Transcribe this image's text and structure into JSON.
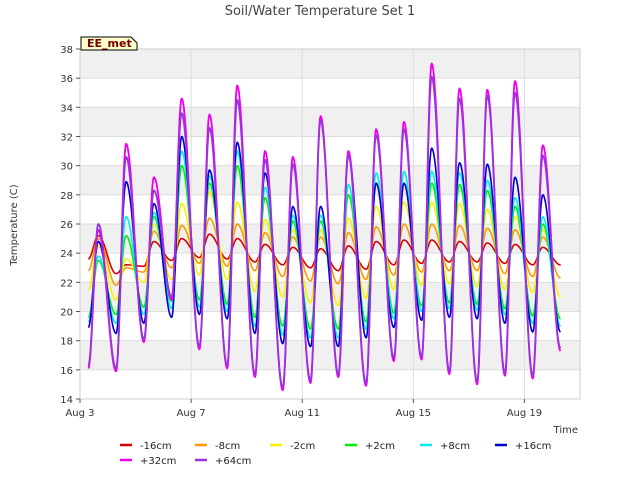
{
  "chart_data": {
    "type": "line",
    "title": "Soil/Water Temperature Set 1",
    "xlabel": "Time",
    "ylabel": "Temperature (C)",
    "site_label": "EE_met",
    "xlim": [
      0,
      18
    ],
    "ylim": [
      14,
      38
    ],
    "yticks": [
      14,
      16,
      18,
      20,
      22,
      24,
      26,
      28,
      30,
      32,
      34,
      36,
      38
    ],
    "xticks": [
      {
        "day": 0,
        "label": "Aug 3"
      },
      {
        "day": 4,
        "label": "Aug 7"
      },
      {
        "day": 8,
        "label": "Aug 11"
      },
      {
        "day": 12,
        "label": "Aug 15"
      },
      {
        "day": 16,
        "label": "Aug 19"
      }
    ],
    "grid": true,
    "legend_position": "bottom",
    "x_day_start": 0.3,
    "x_day_end": 17.3,
    "series": [
      {
        "name": "-16cm",
        "color": "#dd0000",
        "width": 1.6,
        "peaks": [
          25.2,
          23.2,
          24.8,
          25.0,
          25.3,
          25.0,
          24.6,
          24.4,
          24.3,
          24.5,
          24.8,
          24.9,
          24.9,
          24.8,
          24.7,
          24.6,
          24.4,
          24.2
        ],
        "troughs": [
          23.6,
          22.6,
          23.1,
          23.5,
          23.7,
          23.6,
          23.4,
          23.2,
          23.0,
          22.8,
          22.9,
          23.2,
          23.3,
          23.4,
          23.4,
          23.3,
          23.2,
          23.2
        ]
      },
      {
        "name": "-8cm",
        "color": "#ff9900",
        "width": 1.6,
        "peaks": [
          25.0,
          23.0,
          25.5,
          25.9,
          26.4,
          26.0,
          25.4,
          25.1,
          25.1,
          25.4,
          25.8,
          26.0,
          26.0,
          25.9,
          25.7,
          25.6,
          25.1,
          24.6
        ],
        "troughs": [
          22.8,
          21.8,
          22.7,
          23.0,
          23.3,
          23.1,
          22.8,
          22.4,
          22.1,
          21.9,
          22.2,
          22.5,
          22.7,
          22.8,
          22.8,
          22.6,
          22.4,
          22.3
        ]
      },
      {
        "name": "-2cm",
        "color": "#ffee00",
        "width": 1.6,
        "peaks": [
          24.5,
          23.6,
          26.0,
          27.4,
          28.2,
          27.5,
          26.3,
          25.6,
          25.6,
          26.4,
          27.2,
          27.5,
          27.5,
          27.4,
          27.0,
          26.5,
          25.6,
          24.6
        ],
        "troughs": [
          21.5,
          20.8,
          22.0,
          22.2,
          22.5,
          22.2,
          21.4,
          21.0,
          20.6,
          20.4,
          20.9,
          21.5,
          21.8,
          21.9,
          21.7,
          21.5,
          21.3,
          21.0
        ]
      },
      {
        "name": "+2cm",
        "color": "#00ee00",
        "width": 1.6,
        "peaks": [
          23.5,
          25.2,
          26.5,
          30.0,
          28.8,
          30.0,
          27.8,
          26.2,
          26.2,
          28.0,
          28.8,
          28.8,
          28.8,
          28.7,
          28.3,
          27.2,
          26.0,
          24.0
        ],
        "troughs": [
          19.6,
          19.8,
          20.3,
          20.7,
          20.8,
          20.5,
          19.6,
          19.0,
          18.8,
          18.8,
          19.3,
          19.9,
          20.4,
          20.6,
          20.5,
          20.2,
          19.7,
          19.5
        ]
      },
      {
        "name": "+8cm",
        "color": "#00eeee",
        "width": 1.6,
        "peaks": [
          23.8,
          26.5,
          26.8,
          31.0,
          29.3,
          31.0,
          28.5,
          26.6,
          26.6,
          28.7,
          29.5,
          29.6,
          29.6,
          29.5,
          29.0,
          27.8,
          26.5,
          24.3
        ],
        "troughs": [
          19.3,
          19.2,
          19.8,
          20.2,
          20.3,
          20.0,
          19.0,
          18.4,
          18.2,
          18.2,
          18.8,
          19.5,
          20.0,
          20.2,
          20.1,
          19.8,
          19.2,
          19.0
        ]
      },
      {
        "name": "+16cm",
        "color": "#0000cc",
        "width": 1.6,
        "peaks": [
          24.8,
          28.9,
          27.4,
          32.0,
          29.7,
          31.6,
          29.5,
          27.2,
          27.2,
          30.7,
          28.8,
          28.8,
          31.2,
          30.2,
          30.1,
          29.2,
          28.0,
          25.6
        ],
        "troughs": [
          18.9,
          18.5,
          19.2,
          19.6,
          19.8,
          19.5,
          18.5,
          17.8,
          17.6,
          17.6,
          18.2,
          18.9,
          19.4,
          19.6,
          19.5,
          19.2,
          18.6,
          18.6
        ]
      },
      {
        "name": "+32cm",
        "color": "#ee00ee",
        "width": 1.8,
        "peaks": [
          25.6,
          31.5,
          29.2,
          34.6,
          33.5,
          35.5,
          31.0,
          30.6,
          33.4,
          31.0,
          32.5,
          33.0,
          37.0,
          35.3,
          35.2,
          35.8,
          31.4,
          29.0
        ],
        "troughs": [
          16.1,
          15.9,
          17.9,
          20.8,
          17.4,
          16.1,
          15.5,
          14.6,
          15.1,
          15.5,
          14.9,
          16.6,
          16.7,
          15.7,
          15.0,
          15.6,
          15.4,
          17.3
        ]
      },
      {
        "name": "+64cm",
        "color": "#9933dd",
        "width": 1.8,
        "peaks": [
          26.0,
          30.6,
          28.3,
          33.6,
          32.6,
          34.5,
          30.4,
          30.1,
          33.1,
          30.7,
          32.1,
          32.5,
          36.1,
          34.6,
          34.8,
          35.0,
          30.7,
          28.5
        ],
        "troughs": [
          16.3,
          16.1,
          18.1,
          21.0,
          17.6,
          16.3,
          15.7,
          14.8,
          15.3,
          15.7,
          15.1,
          16.8,
          16.9,
          15.9,
          15.2,
          15.8,
          15.6,
          17.5
        ]
      }
    ]
  }
}
